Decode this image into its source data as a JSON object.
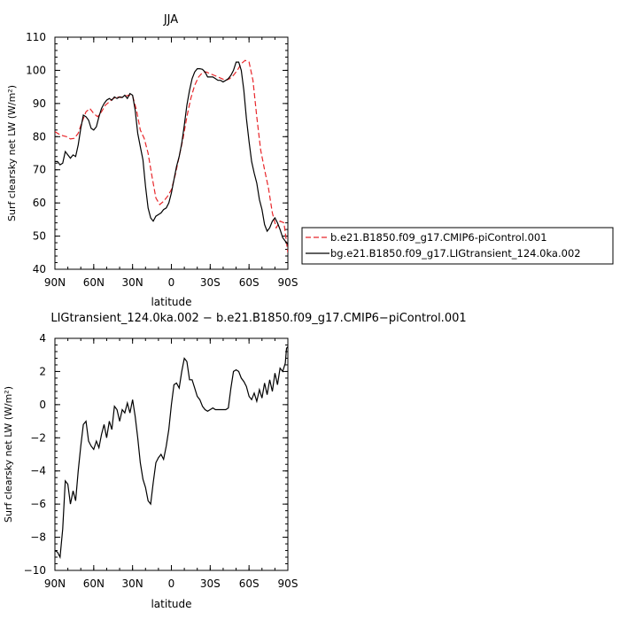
{
  "chart_data": [
    {
      "type": "line",
      "title": "JJA",
      "xlabel": "latitude",
      "ylabel": "Surf clearsky net LW (W/m²)",
      "xlim": [
        90,
        -90
      ],
      "ylim": [
        40,
        110
      ],
      "x_ticks": [
        90,
        60,
        30,
        0,
        -30,
        -60,
        -90
      ],
      "x_tick_labels": [
        "90N",
        "60N",
        "30N",
        "0",
        "30S",
        "60S",
        "90S"
      ],
      "y_ticks": [
        40,
        50,
        60,
        70,
        80,
        90,
        100,
        110
      ],
      "y_tick_labels": [
        "40",
        "50",
        "60",
        "70",
        "80",
        "90",
        "100",
        "110"
      ],
      "legend": "right",
      "series": [
        {
          "name": "b.e21.B1850.f09_g17.CMIP6-piControl.001",
          "color": "#e8262a",
          "style": "dashed",
          "x": [
            90,
            87,
            84,
            81,
            78,
            75,
            72,
            69,
            66,
            63,
            60,
            57,
            54,
            51,
            48,
            45,
            42,
            39,
            36,
            33,
            30,
            27,
            24,
            21,
            18,
            15,
            12,
            9,
            6,
            3,
            0,
            -3,
            -6,
            -9,
            -12,
            -15,
            -18,
            -21,
            -24,
            -27,
            -30,
            -33,
            -36,
            -39,
            -42,
            -45,
            -48,
            -51,
            -54,
            -57,
            -60,
            -63,
            -66,
            -69,
            -72,
            -75,
            -78,
            -81,
            -84,
            -87,
            -90
          ],
          "y": [
            81.5,
            80.8,
            80.3,
            80.0,
            79.3,
            79.5,
            81.0,
            84.5,
            87.5,
            88.5,
            87.0,
            86.0,
            87.5,
            89.5,
            90.5,
            91.5,
            92.0,
            91.8,
            92.2,
            92.5,
            92.3,
            88.0,
            82.0,
            79.5,
            75.0,
            68.0,
            61.5,
            59.5,
            60.5,
            62.0,
            64.0,
            68.5,
            74.0,
            79.5,
            86.0,
            91.5,
            95.5,
            98.0,
            99.3,
            99.5,
            99.0,
            98.5,
            98.0,
            97.5,
            97.0,
            97.5,
            98.5,
            100.0,
            102.0,
            103.0,
            102.5,
            97.0,
            86.0,
            76.0,
            70.0,
            64.5,
            57.0,
            52.5,
            54.5,
            54.0,
            45.0
          ]
        },
        {
          "name": "bg.e21.B1850.f09_g17.LIGtransient_124.0ka.002",
          "color": "#000000",
          "style": "solid",
          "x": [
            90,
            88,
            86,
            84,
            82,
            80,
            78,
            76,
            74,
            72,
            70,
            68,
            66,
            64,
            62,
            60,
            58,
            56,
            54,
            52,
            50,
            48,
            46,
            44,
            42,
            40,
            38,
            36,
            34,
            32,
            30,
            28,
            26,
            24,
            22,
            20,
            18,
            16,
            14,
            12,
            10,
            8,
            6,
            4,
            2,
            0,
            -2,
            -4,
            -6,
            -8,
            -10,
            -12,
            -14,
            -16,
            -18,
            -20,
            -22,
            -24,
            -26,
            -28,
            -30,
            -32,
            -34,
            -36,
            -38,
            -40,
            -42,
            -44,
            -46,
            -48,
            -50,
            -52,
            -54,
            -56,
            -58,
            -60,
            -62,
            -64,
            -66,
            -68,
            -70,
            -72,
            -74,
            -76,
            -78,
            -80,
            -82,
            -84,
            -86,
            -88,
            -90
          ],
          "y": [
            72.5,
            72.5,
            71.5,
            72.0,
            75.5,
            74.5,
            73.5,
            74.5,
            74.0,
            77.5,
            82.5,
            86.5,
            86.0,
            85.0,
            82.5,
            82.0,
            83.0,
            86.0,
            88.5,
            90.0,
            91.0,
            91.5,
            91.0,
            92.0,
            91.5,
            92.0,
            91.8,
            92.5,
            91.5,
            93.0,
            92.5,
            88.0,
            81.0,
            77.0,
            73.0,
            65.0,
            58.5,
            55.5,
            54.5,
            56.0,
            56.5,
            57.0,
            58.0,
            58.5,
            60.0,
            63.0,
            67.0,
            71.0,
            74.0,
            78.0,
            83.5,
            89.5,
            94.0,
            97.5,
            99.5,
            100.5,
            100.5,
            100.3,
            99.5,
            98.0,
            98.0,
            98.0,
            97.5,
            97.0,
            97.0,
            96.5,
            97.0,
            97.5,
            98.5,
            100.0,
            102.5,
            102.5,
            100.0,
            94.0,
            85.5,
            78.5,
            72.5,
            69.0,
            66.0,
            61.0,
            58.0,
            53.5,
            51.5,
            52.5,
            54.5,
            55.5,
            54.0,
            52.0,
            49.5,
            48.5,
            47.5
          ]
        }
      ]
    },
    {
      "type": "line",
      "title": "LIGtransient_124.0ka.002 − b.e21.B1850.f09_g17.CMIP6−piControl.001",
      "xlabel": "latitude",
      "ylabel": "Surf clearsky net LW (W/m²)",
      "xlim": [
        90,
        -90
      ],
      "ylim": [
        -10,
        4
      ],
      "x_ticks": [
        90,
        60,
        30,
        0,
        -30,
        -60,
        -90
      ],
      "x_tick_labels": [
        "90N",
        "60N",
        "30N",
        "0",
        "30S",
        "60S",
        "90S"
      ],
      "y_ticks": [
        -10,
        -8,
        -6,
        -4,
        -2,
        0,
        2,
        4
      ],
      "y_tick_labels": [
        "−10",
        "−8",
        "−6",
        "−4",
        "−2",
        "0",
        "2",
        "4"
      ],
      "series": [
        {
          "color": "#000000",
          "style": "solid",
          "x": [
            90,
            88,
            86,
            84,
            82,
            80,
            78,
            76,
            74,
            72,
            70,
            68,
            66,
            64,
            62,
            60,
            58,
            56,
            54,
            52,
            50,
            48,
            46,
            44,
            42,
            40,
            38,
            36,
            34,
            32,
            30,
            28,
            26,
            24,
            22,
            20,
            18,
            16,
            14,
            12,
            10,
            8,
            6,
            4,
            2,
            0,
            -2,
            -4,
            -6,
            -8,
            -10,
            -12,
            -14,
            -16,
            -18,
            -20,
            -22,
            -24,
            -26,
            -28,
            -30,
            -32,
            -34,
            -36,
            -38,
            -40,
            -42,
            -44,
            -46,
            -48,
            -50,
            -52,
            -54,
            -56,
            -58,
            -60,
            -62,
            -64,
            -66,
            -68,
            -70,
            -72,
            -74,
            -76,
            -78,
            -80,
            -82,
            -84,
            -86,
            -88,
            -89,
            -90
          ],
          "y": [
            -8.8,
            -8.9,
            -9.2,
            -7.5,
            -4.6,
            -4.8,
            -6.0,
            -5.2,
            -5.8,
            -4.0,
            -2.5,
            -1.2,
            -1.0,
            -2.2,
            -2.5,
            -2.7,
            -2.2,
            -2.6,
            -1.8,
            -1.2,
            -2.0,
            -1.0,
            -1.5,
            -0.1,
            -0.3,
            -1.0,
            -0.3,
            -0.5,
            0.1,
            -0.5,
            0.3,
            -0.7,
            -2.0,
            -3.5,
            -4.5,
            -5.0,
            -5.8,
            -6.0,
            -4.7,
            -3.5,
            -3.2,
            -3.0,
            -3.3,
            -2.5,
            -1.5,
            0.0,
            1.2,
            1.3,
            1.0,
            2.0,
            2.8,
            2.6,
            1.5,
            1.5,
            1.0,
            0.5,
            0.3,
            -0.1,
            -0.3,
            -0.4,
            -0.3,
            -0.2,
            -0.3,
            -0.3,
            -0.3,
            -0.3,
            -0.3,
            -0.2,
            1.0,
            2.0,
            2.1,
            2.0,
            1.6,
            1.4,
            1.1,
            0.5,
            0.3,
            0.7,
            0.2,
            0.9,
            0.4,
            1.3,
            0.6,
            1.5,
            0.8,
            1.9,
            1.2,
            2.2,
            2.0,
            2.5,
            3.4,
            3.5
          ]
        }
      ]
    }
  ]
}
